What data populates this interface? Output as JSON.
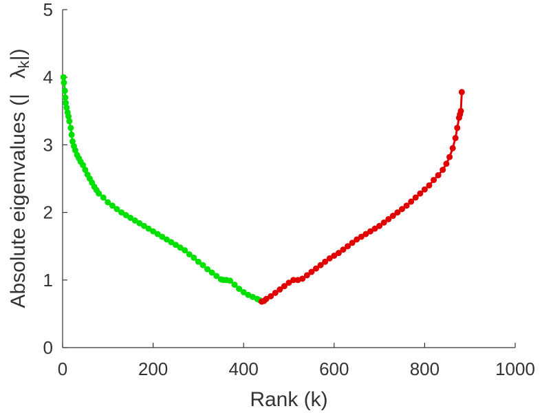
{
  "chart_data": {
    "type": "scatter",
    "title": "",
    "xlabel": "Rank (k)",
    "ylabel_text": "Absolute eigenvalues (|",
    "ylabel_symbol": "λ",
    "ylabel_subscript": "k",
    "ylabel_close": "|)",
    "xlim": [
      0,
      1000
    ],
    "ylim": [
      0,
      5
    ],
    "xticks": [
      "0",
      "200",
      "400",
      "600",
      "800",
      "1000"
    ],
    "yticks": [
      "0",
      "1",
      "2",
      "3",
      "4",
      "5"
    ],
    "grid": false,
    "legend": "none",
    "series": [
      {
        "color": "#00e000",
        "points": [
          [
            2,
            4.0
          ],
          [
            3,
            3.92
          ],
          [
            5,
            3.8
          ],
          [
            6,
            3.7
          ],
          [
            7,
            3.62
          ],
          [
            9,
            3.55
          ],
          [
            11,
            3.48
          ],
          [
            13,
            3.42
          ],
          [
            15,
            3.35
          ],
          [
            18,
            3.25
          ],
          [
            20,
            3.15
          ],
          [
            22,
            3.05
          ],
          [
            25,
            2.98
          ],
          [
            28,
            2.92
          ],
          [
            32,
            2.85
          ],
          [
            36,
            2.8
          ],
          [
            40,
            2.75
          ],
          [
            45,
            2.7
          ],
          [
            50,
            2.63
          ],
          [
            55,
            2.56
          ],
          [
            60,
            2.5
          ],
          [
            65,
            2.44
          ],
          [
            70,
            2.38
          ],
          [
            75,
            2.33
          ],
          [
            80,
            2.28
          ],
          [
            90,
            2.22
          ],
          [
            100,
            2.15
          ],
          [
            110,
            2.1
          ],
          [
            120,
            2.05
          ],
          [
            130,
            2.0
          ],
          [
            140,
            1.96
          ],
          [
            150,
            1.92
          ],
          [
            160,
            1.88
          ],
          [
            170,
            1.84
          ],
          [
            180,
            1.8
          ],
          [
            190,
            1.76
          ],
          [
            200,
            1.72
          ],
          [
            210,
            1.68
          ],
          [
            220,
            1.64
          ],
          [
            230,
            1.6
          ],
          [
            240,
            1.56
          ],
          [
            250,
            1.52
          ],
          [
            260,
            1.48
          ],
          [
            270,
            1.44
          ],
          [
            280,
            1.38
          ],
          [
            290,
            1.33
          ],
          [
            300,
            1.27
          ],
          [
            310,
            1.22
          ],
          [
            320,
            1.16
          ],
          [
            330,
            1.11
          ],
          [
            340,
            1.06
          ],
          [
            350,
            1.01
          ],
          [
            355,
            1.0
          ],
          [
            362,
            1.0
          ],
          [
            370,
            0.99
          ],
          [
            380,
            0.93
          ],
          [
            390,
            0.87
          ],
          [
            400,
            0.82
          ],
          [
            410,
            0.78
          ],
          [
            420,
            0.75
          ],
          [
            430,
            0.72
          ],
          [
            436,
            0.7
          ]
        ]
      },
      {
        "color": "#e00000",
        "points": [
          [
            440,
            0.68
          ],
          [
            445,
            0.69
          ],
          [
            450,
            0.72
          ],
          [
            460,
            0.76
          ],
          [
            470,
            0.81
          ],
          [
            480,
            0.86
          ],
          [
            490,
            0.91
          ],
          [
            500,
            0.96
          ],
          [
            510,
            1.0
          ],
          [
            520,
            1.0
          ],
          [
            530,
            1.02
          ],
          [
            540,
            1.07
          ],
          [
            550,
            1.12
          ],
          [
            560,
            1.17
          ],
          [
            570,
            1.22
          ],
          [
            580,
            1.27
          ],
          [
            590,
            1.32
          ],
          [
            600,
            1.36
          ],
          [
            610,
            1.4
          ],
          [
            620,
            1.45
          ],
          [
            630,
            1.5
          ],
          [
            640,
            1.55
          ],
          [
            650,
            1.6
          ],
          [
            660,
            1.64
          ],
          [
            670,
            1.68
          ],
          [
            680,
            1.72
          ],
          [
            690,
            1.76
          ],
          [
            700,
            1.8
          ],
          [
            710,
            1.85
          ],
          [
            720,
            1.9
          ],
          [
            730,
            1.95
          ],
          [
            740,
            2.0
          ],
          [
            750,
            2.05
          ],
          [
            760,
            2.1
          ],
          [
            770,
            2.16
          ],
          [
            780,
            2.22
          ],
          [
            790,
            2.28
          ],
          [
            800,
            2.34
          ],
          [
            810,
            2.4
          ],
          [
            820,
            2.48
          ],
          [
            830,
            2.55
          ],
          [
            840,
            2.63
          ],
          [
            848,
            2.72
          ],
          [
            855,
            2.82
          ],
          [
            862,
            2.95
          ],
          [
            868,
            3.1
          ],
          [
            872,
            3.25
          ],
          [
            876,
            3.4
          ],
          [
            878,
            3.45
          ],
          [
            880,
            3.5
          ],
          [
            882,
            3.78
          ]
        ]
      }
    ]
  }
}
